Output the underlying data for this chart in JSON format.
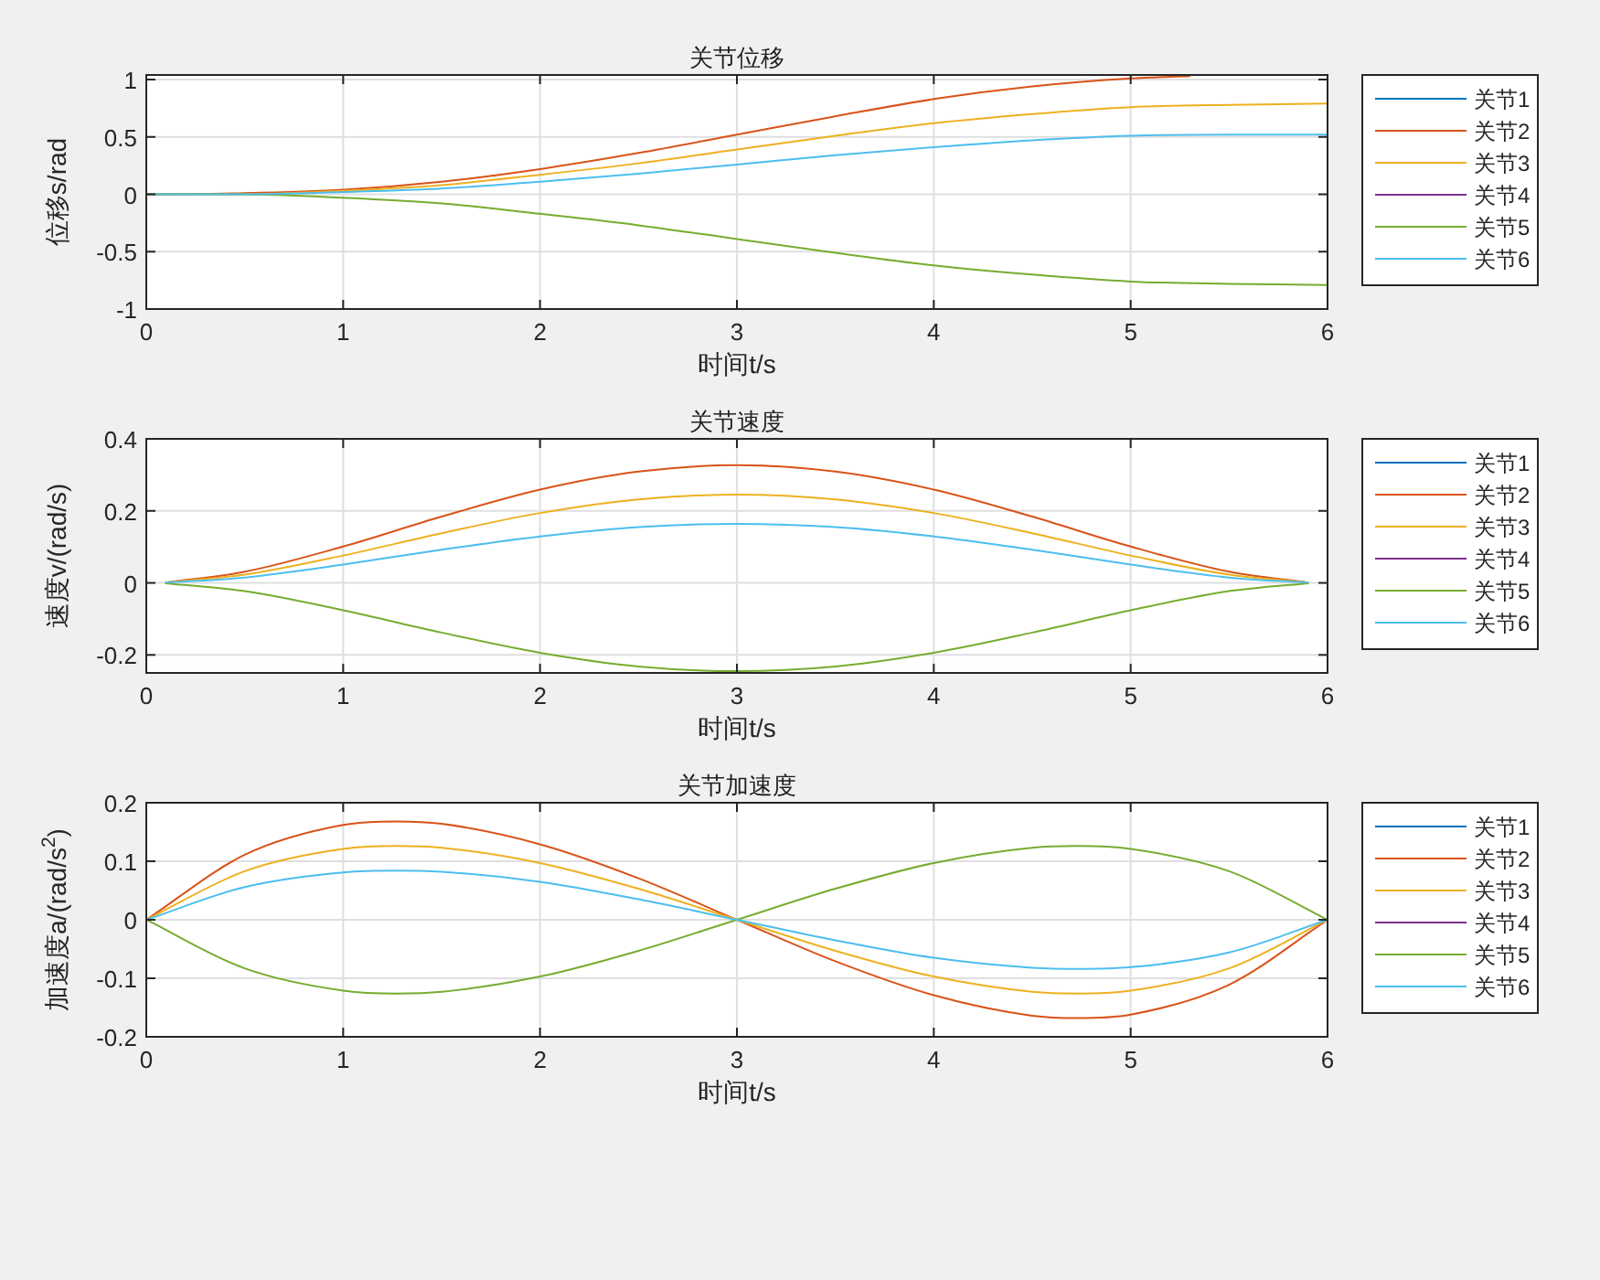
{
  "chart_data": [
    {
      "type": "line",
      "title": "关节位移",
      "xlabel": "时间t/s",
      "ylabel": "位移s/rad",
      "xlim": [
        0,
        6
      ],
      "xticks": [
        0,
        1,
        2,
        3,
        4,
        5,
        6
      ],
      "ylim": [
        -1,
        1.04
      ],
      "yticks": [
        -1,
        -0.5,
        0,
        0.5,
        1
      ],
      "grid": true,
      "legend": "right",
      "series": [
        {
          "name": "关节1",
          "color": "#0072bd"
        },
        {
          "name": "关节2",
          "color": "#d95319",
          "x": [
            0,
            0.5,
            1,
            1.5,
            2,
            2.5,
            3,
            3.5,
            4,
            4.5,
            5,
            5.3
          ],
          "values": [
            0,
            0.01,
            0.04,
            0.11,
            0.22,
            0.36,
            0.52,
            0.68,
            0.83,
            0.94,
            1.01,
            1.03
          ]
        },
        {
          "name": "关节3",
          "color": "#edb120",
          "x": [
            0,
            0.5,
            1,
            1.5,
            2,
            2.5,
            3,
            3.5,
            4,
            4.5,
            5,
            5.5,
            6
          ],
          "values": [
            0,
            0,
            0.03,
            0.08,
            0.17,
            0.27,
            0.39,
            0.51,
            0.62,
            0.7,
            0.76,
            0.78,
            0.79
          ]
        },
        {
          "name": "关节4",
          "color": "#7e2f8e"
        },
        {
          "name": "关节5",
          "color": "#77ac30",
          "x": [
            0,
            0.5,
            1,
            1.5,
            2,
            2.5,
            3,
            3.5,
            4,
            4.5,
            5,
            5.5,
            6
          ],
          "values": [
            0,
            0,
            -0.03,
            -0.08,
            -0.17,
            -0.27,
            -0.39,
            -0.51,
            -0.62,
            -0.7,
            -0.76,
            -0.78,
            -0.79
          ]
        },
        {
          "name": "关节6",
          "color": "#4dbeee",
          "x": [
            0,
            0.5,
            1,
            1.5,
            2,
            2.5,
            3,
            3.5,
            4,
            4.5,
            5,
            5.5,
            6
          ],
          "values": [
            0,
            0,
            0.02,
            0.05,
            0.11,
            0.18,
            0.26,
            0.34,
            0.41,
            0.47,
            0.51,
            0.52,
            0.52
          ]
        }
      ]
    },
    {
      "type": "line",
      "title": "关节速度",
      "xlabel": "时间t/s",
      "ylabel": "速度v/(rad/s)",
      "xlim": [
        0,
        6
      ],
      "xticks": [
        0,
        1,
        2,
        3,
        4,
        5,
        6
      ],
      "ylim": [
        -0.25,
        0.4
      ],
      "yticks": [
        -0.2,
        0,
        0.2,
        0.4
      ],
      "grid": true,
      "legend": "right",
      "series": [
        {
          "name": "关节1",
          "color": "#0072bd"
        },
        {
          "name": "关节2",
          "color": "#d95319",
          "x": [
            0.1,
            0.5,
            1,
            1.5,
            2,
            2.5,
            3,
            3.5,
            4,
            4.5,
            5,
            5.5,
            5.9
          ],
          "values": [
            0.001,
            0.031,
            0.101,
            0.184,
            0.259,
            0.309,
            0.327,
            0.309,
            0.259,
            0.184,
            0.101,
            0.031,
            0.001
          ]
        },
        {
          "name": "关节3",
          "color": "#edb120",
          "x": [
            0.1,
            0.5,
            1,
            1.5,
            2,
            2.5,
            3,
            3.5,
            4,
            4.5,
            5,
            5.5,
            5.9
          ],
          "values": [
            0.001,
            0.023,
            0.076,
            0.138,
            0.194,
            0.232,
            0.245,
            0.232,
            0.194,
            0.138,
            0.076,
            0.023,
            0.001
          ]
        },
        {
          "name": "关节4",
          "color": "#7e2f8e"
        },
        {
          "name": "关节5",
          "color": "#77ac30",
          "x": [
            0.1,
            0.5,
            1,
            1.5,
            2,
            2.5,
            3,
            3.5,
            4,
            4.5,
            5,
            5.5,
            5.9
          ],
          "values": [
            -0.001,
            -0.023,
            -0.076,
            -0.138,
            -0.194,
            -0.232,
            -0.245,
            -0.232,
            -0.194,
            -0.138,
            -0.076,
            -0.023,
            -0.001
          ]
        },
        {
          "name": "关节6",
          "color": "#4dbeee",
          "x": [
            0.1,
            0.5,
            1,
            1.5,
            2,
            2.5,
            3,
            3.5,
            4,
            4.5,
            5,
            5.5,
            5.9
          ],
          "values": [
            0.001,
            0.015,
            0.051,
            0.092,
            0.129,
            0.155,
            0.164,
            0.155,
            0.129,
            0.092,
            0.051,
            0.015,
            0.001
          ]
        }
      ]
    },
    {
      "type": "line",
      "title": "关节加速度",
      "xlabel": "时间t/s",
      "ylabel": "加速度a/(rad/s$^{2}$)",
      "xlim": [
        0,
        6
      ],
      "xticks": [
        0,
        1,
        2,
        3,
        4,
        5,
        6
      ],
      "ylim": [
        -0.2,
        0.2
      ],
      "yticks": [
        -0.2,
        -0.1,
        0,
        0.1,
        0.2
      ],
      "grid": true,
      "legend": "right",
      "series": [
        {
          "name": "关节1",
          "color": "#0072bd"
        },
        {
          "name": "关节2",
          "color": "#d95319",
          "x": [
            0,
            0.5,
            1,
            1.27,
            1.5,
            2,
            2.5,
            3,
            3.5,
            4,
            4.5,
            4.73,
            5,
            5.5,
            6
          ],
          "values": [
            0,
            0.111,
            0.162,
            0.168,
            0.164,
            0.129,
            0.071,
            0,
            -0.071,
            -0.129,
            -0.164,
            -0.168,
            -0.162,
            -0.111,
            0
          ]
        },
        {
          "name": "关节3",
          "color": "#edb120",
          "x": [
            0,
            0.5,
            1,
            1.27,
            1.5,
            2,
            2.5,
            3,
            3.5,
            4,
            4.5,
            4.73,
            5,
            5.5,
            6
          ],
          "values": [
            0,
            0.083,
            0.121,
            0.126,
            0.123,
            0.097,
            0.053,
            0,
            -0.053,
            -0.097,
            -0.123,
            -0.126,
            -0.121,
            -0.083,
            0
          ]
        },
        {
          "name": "关节4",
          "color": "#7e2f8e"
        },
        {
          "name": "关节5",
          "color": "#77ac30",
          "x": [
            0,
            0.5,
            1,
            1.27,
            1.5,
            2,
            2.5,
            3,
            3.5,
            4,
            4.5,
            4.73,
            5,
            5.5,
            6
          ],
          "values": [
            0,
            -0.083,
            -0.121,
            -0.126,
            -0.123,
            -0.097,
            -0.053,
            0,
            0.053,
            0.097,
            0.123,
            0.126,
            0.121,
            0.083,
            0
          ]
        },
        {
          "name": "关节6",
          "color": "#4dbeee",
          "x": [
            0,
            0.5,
            1,
            1.27,
            1.5,
            2,
            2.5,
            3,
            3.5,
            4,
            4.5,
            4.73,
            5,
            5.5,
            6
          ],
          "values": [
            0,
            0.056,
            0.081,
            0.084,
            0.082,
            0.065,
            0.035,
            0,
            -0.035,
            -0.065,
            -0.082,
            -0.084,
            -0.081,
            -0.056,
            0
          ]
        }
      ]
    }
  ]
}
